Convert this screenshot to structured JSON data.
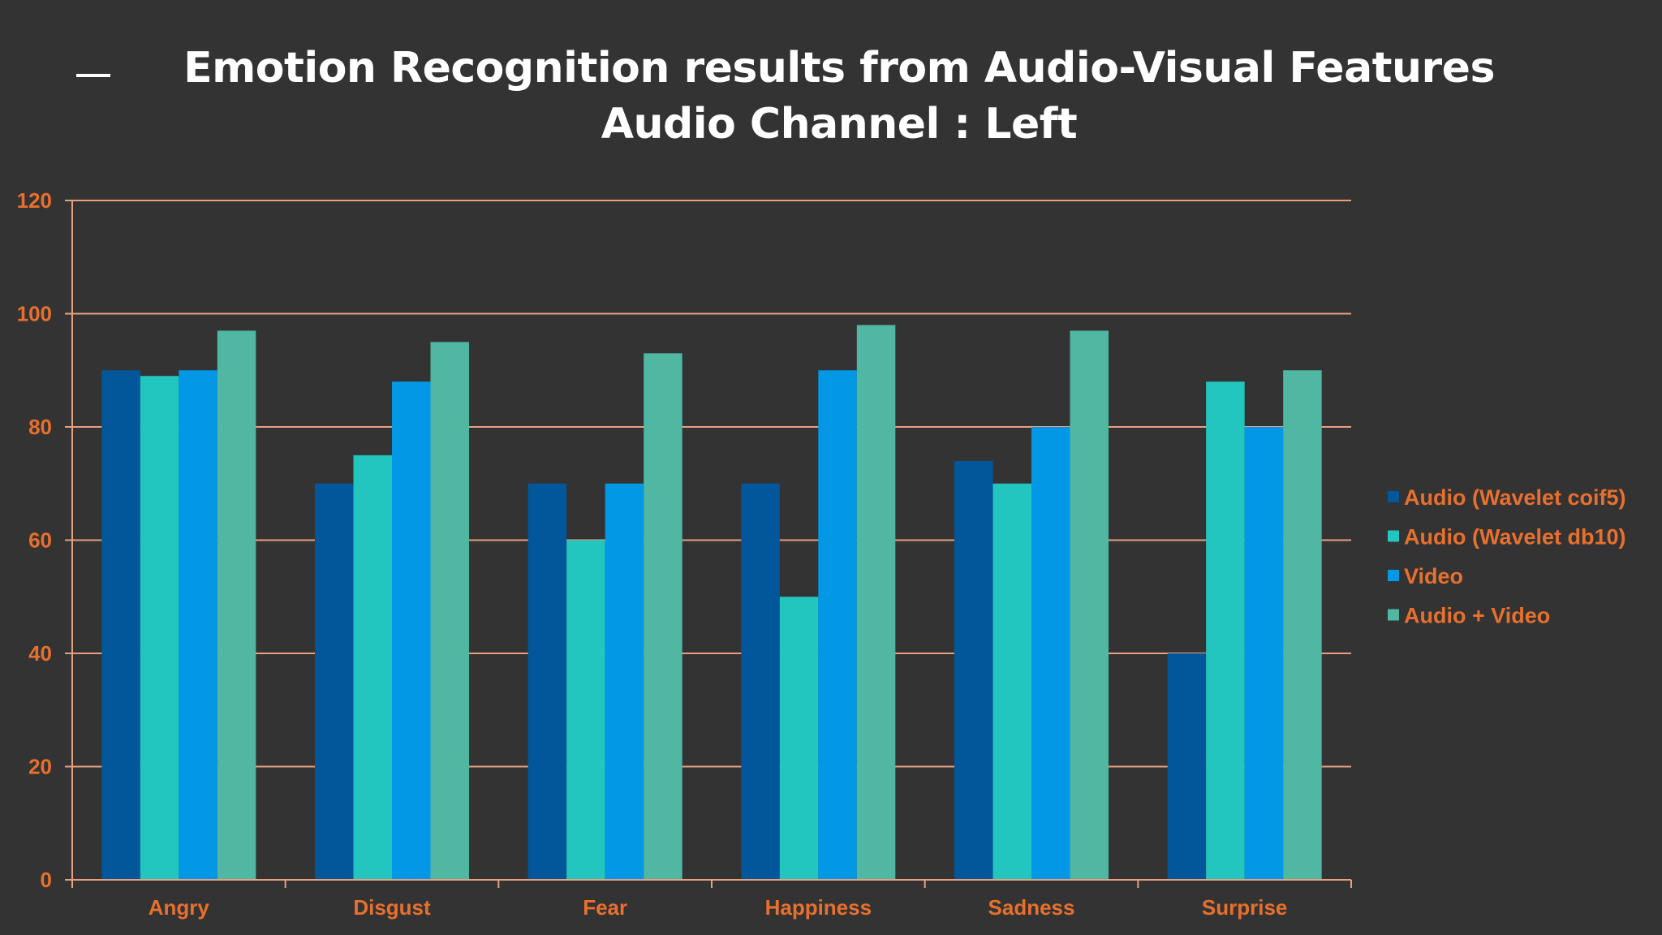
{
  "chart_data": {
    "type": "bar",
    "title": "Emotion Recognition results from Audio-Visual Features",
    "subtitle": "Audio Channel : Left",
    "categories": [
      "Angry",
      "Disgust",
      "Fear",
      "Happiness",
      "Sadness",
      "Surprise"
    ],
    "series": [
      {
        "name": "Audio (Wavelet coif5)",
        "color": "#02579a",
        "values": [
          90,
          70,
          70,
          70,
          74,
          40
        ]
      },
      {
        "name": "Audio (Wavelet db10)",
        "color": "#22c6bf",
        "values": [
          89,
          75,
          60,
          50,
          70,
          88
        ]
      },
      {
        "name": "Video",
        "color": "#0298e6",
        "values": [
          90,
          88,
          70,
          90,
          80,
          80
        ]
      },
      {
        "name": "Audio + Video",
        "color": "#50b7a3",
        "values": [
          97,
          95,
          93,
          98,
          97,
          90
        ]
      }
    ],
    "ylim": [
      0,
      120
    ],
    "yticks": [
      0,
      20,
      40,
      60,
      80,
      100,
      120
    ],
    "grid": true,
    "legend_position": "right",
    "text_color": "#e8702e",
    "grid_color": "#e8a080",
    "background": "#333333"
  }
}
